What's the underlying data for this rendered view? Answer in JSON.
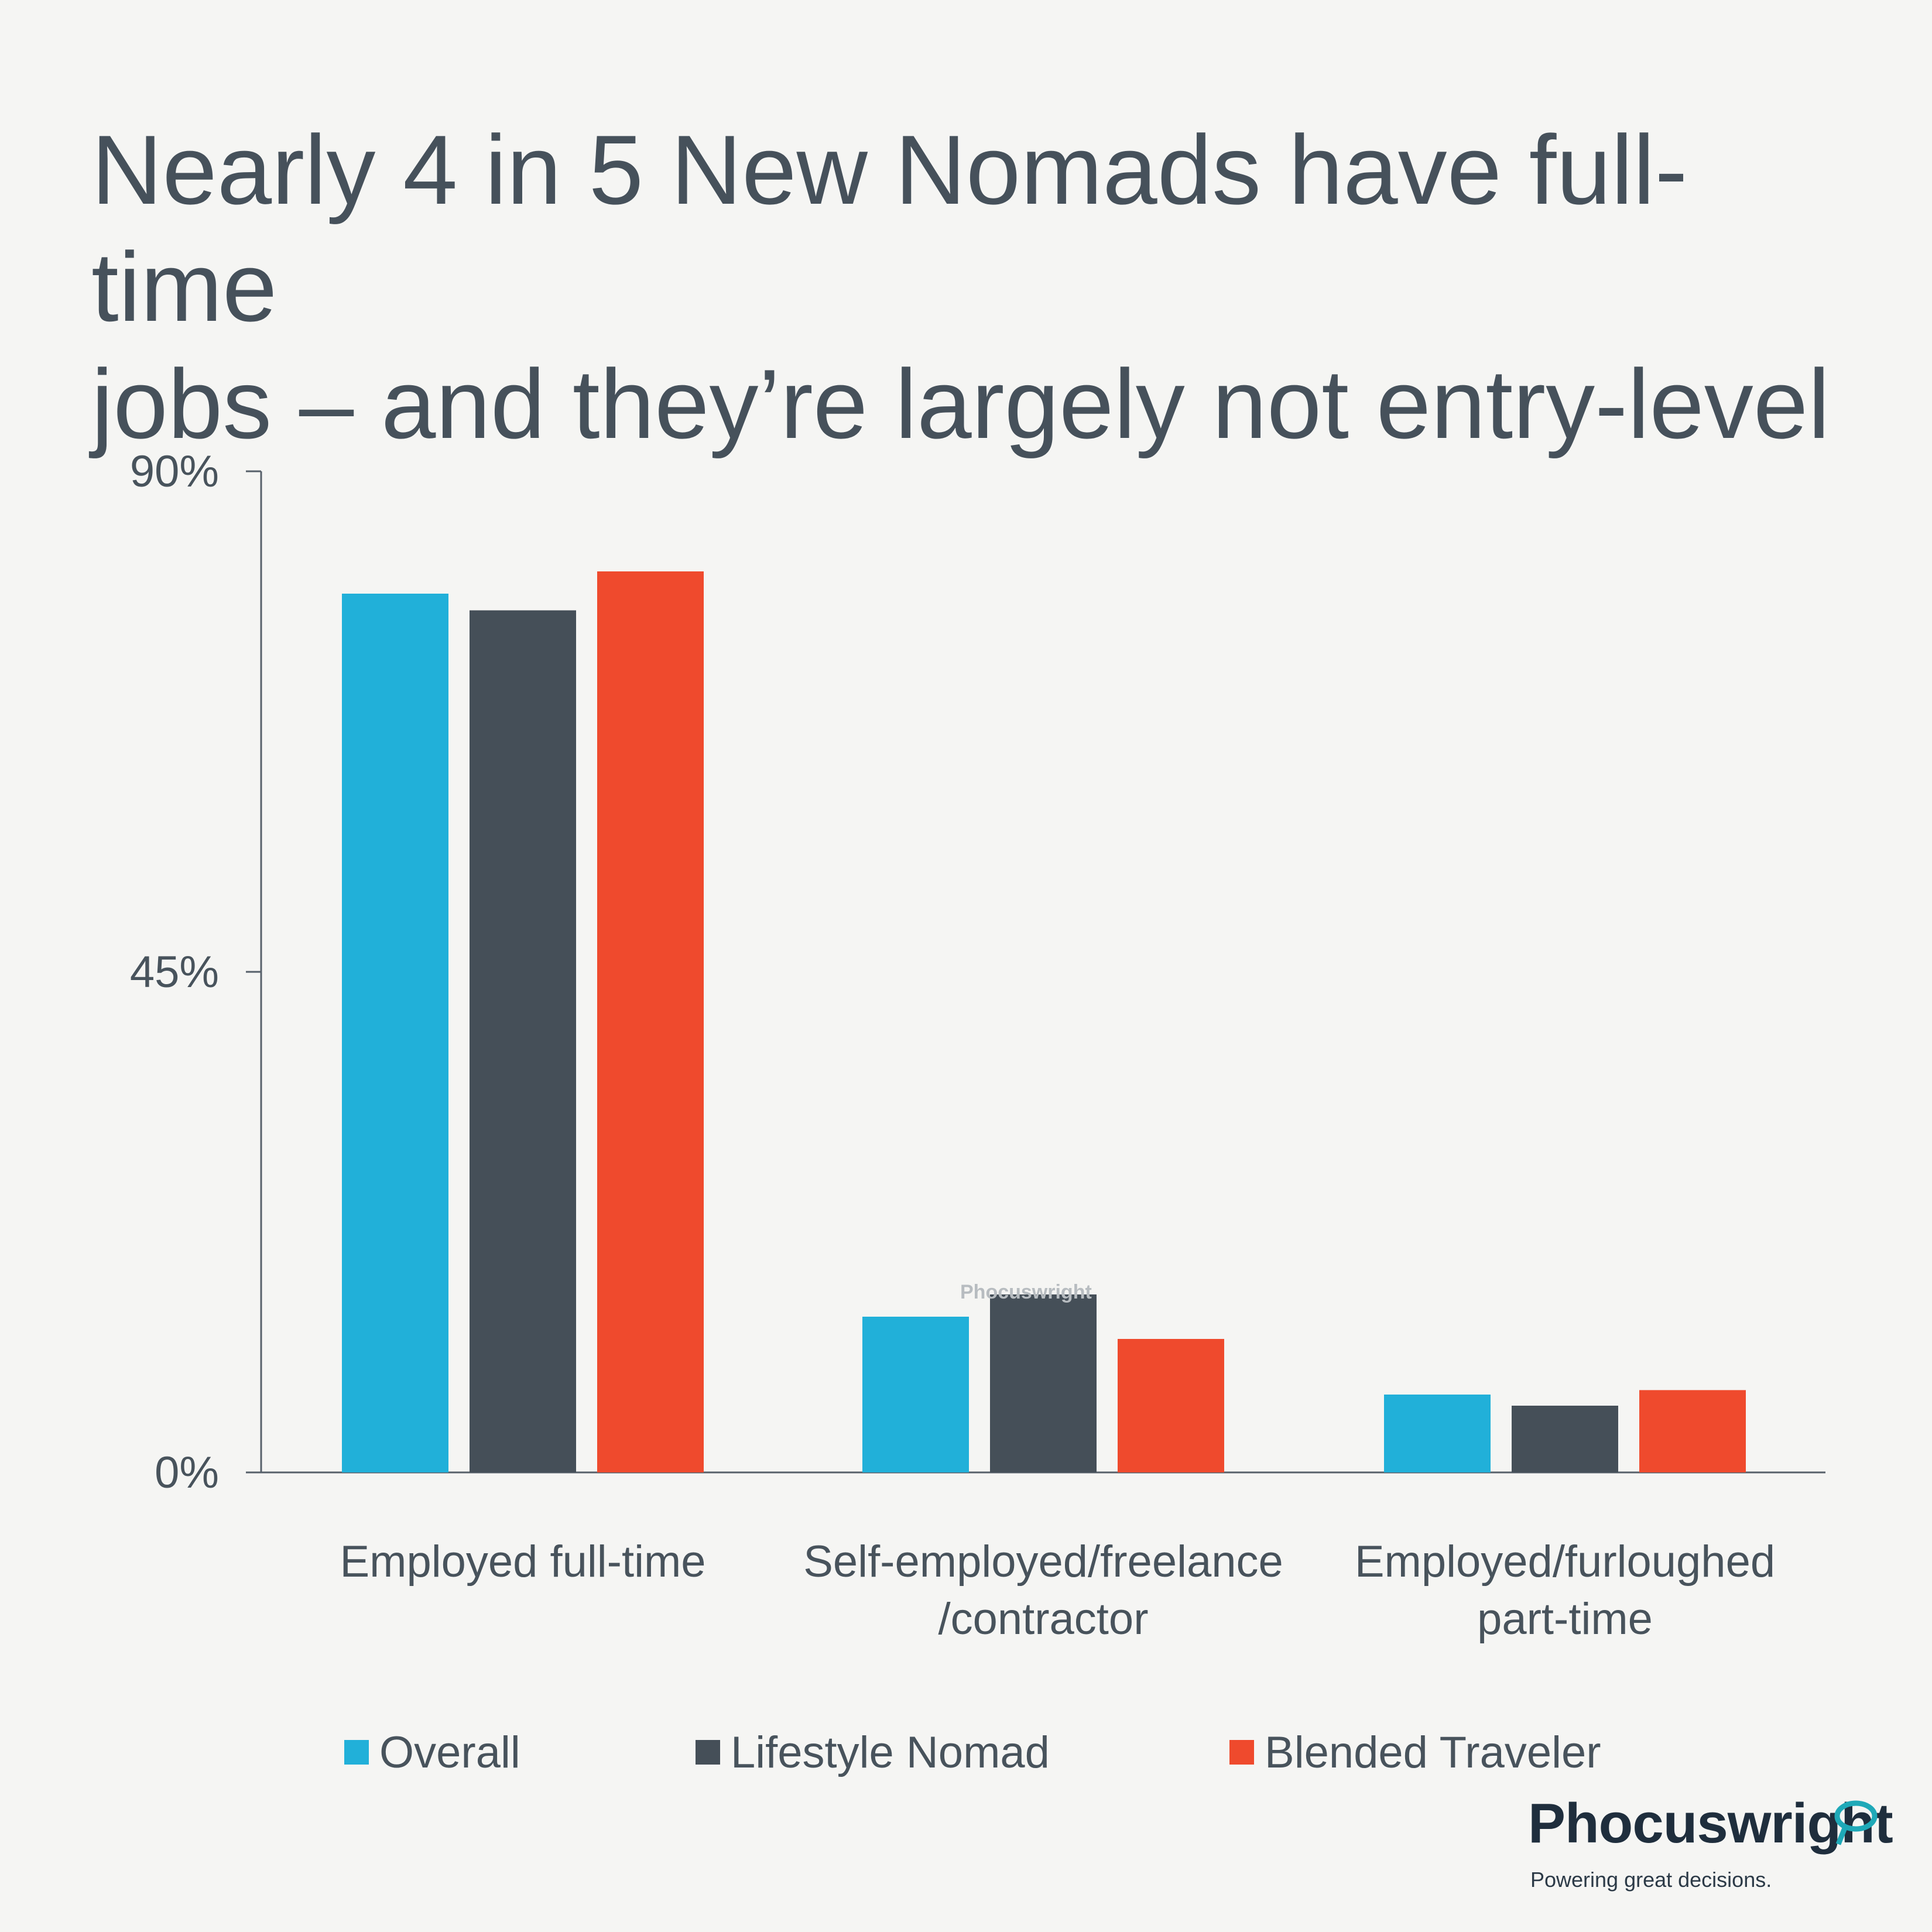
{
  "title_line1": "Nearly 4 in 5 New Nomads have full-time",
  "title_line2": "jobs – and they’re largely not entry-level",
  "chart_data": {
    "type": "bar",
    "categories": [
      [
        "Employed full-time"
      ],
      [
        "Self-employed/freelance",
        "/contractor"
      ],
      [
        "Employed/furloughed",
        "part-time"
      ]
    ],
    "series": [
      {
        "name": "Overall",
        "color": "#21b0d9",
        "values": [
          79,
          14,
          7
        ]
      },
      {
        "name": "Lifestyle Nomad",
        "color": "#454f58",
        "values": [
          77.5,
          16,
          6
        ]
      },
      {
        "name": "Blended Traveler",
        "color": "#ef4a2d",
        "values": [
          81,
          12,
          7.4
        ]
      }
    ],
    "y_ticks": [
      "0%",
      "45%",
      "90%"
    ],
    "ylim": [
      0,
      90
    ],
    "legend_position": "bottom",
    "grid": false
  },
  "watermark": "Phocuswright",
  "logo": {
    "wordmark": "Phocuswright",
    "tagline": "Powering great decisions."
  }
}
